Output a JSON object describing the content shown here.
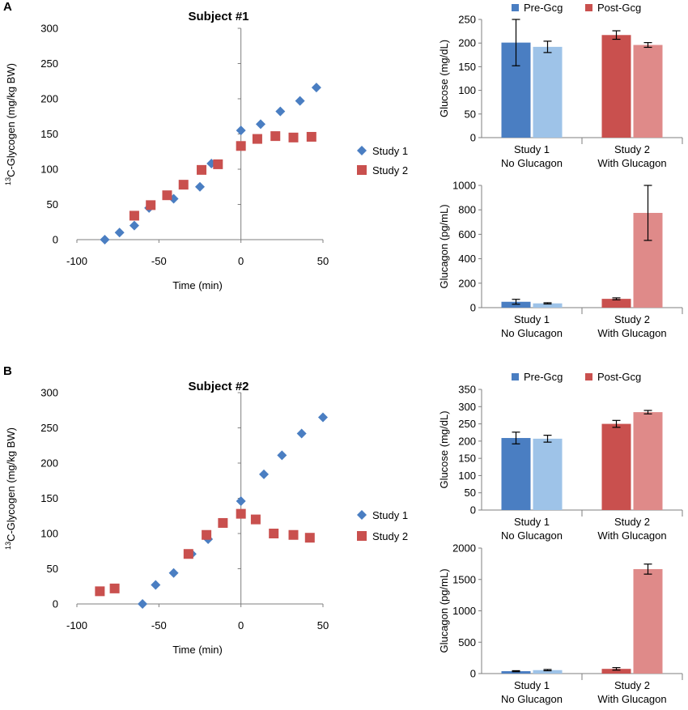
{
  "panel_labels": [
    "A",
    "B"
  ],
  "colors": {
    "study1": "#4a7ec2",
    "study2": "#c9504e",
    "pre1": "#4a7ec2",
    "post1": "#9ec3e8",
    "pre2": "#c9504e",
    "post2": "#df8a89"
  },
  "chart_data": [
    {
      "id": "A-scatter",
      "type": "scatter",
      "title": "Subject #1",
      "xlabel": "Time (min)",
      "ylabel_sup": "13",
      "ylabel_rest": "C-Glycogen (mg/kg BW)",
      "xlim": [
        -100,
        50
      ],
      "ylim": [
        0,
        300
      ],
      "xticks": [
        -100,
        -50,
        0,
        50
      ],
      "yticks": [
        0,
        50,
        100,
        150,
        200,
        250,
        300
      ],
      "series": [
        {
          "name": "Study 1",
          "marker": "diamond",
          "x": [
            -83,
            -74,
            -65,
            -56,
            -41,
            -25,
            -18,
            0,
            12,
            24,
            36,
            46
          ],
          "y": [
            0,
            10,
            20,
            45,
            58,
            75,
            108,
            155,
            164,
            182,
            197,
            216
          ]
        },
        {
          "name": "Study 2",
          "marker": "square",
          "x": [
            -65,
            -55,
            -45,
            -35,
            -24,
            -14,
            0,
            10,
            21,
            32,
            43
          ],
          "y": [
            34,
            49,
            63,
            78,
            99,
            107,
            133,
            143,
            147,
            145,
            146
          ]
        }
      ]
    },
    {
      "id": "A-glucose",
      "type": "bar",
      "ylabel": "Glucose (mg/dL)",
      "ylim": [
        0,
        250
      ],
      "yticks": [
        0,
        50,
        100,
        150,
        200,
        250
      ],
      "legend": [
        "Pre-Gcg",
        "Post-Gcg"
      ],
      "groups": [
        [
          "Study 1",
          "No Glucagon"
        ],
        [
          "Study 2",
          "With Glucagon"
        ]
      ],
      "values": [
        [
          201,
          192
        ],
        [
          217,
          196
        ]
      ],
      "errors": [
        [
          49,
          12
        ],
        [
          9,
          5
        ]
      ]
    },
    {
      "id": "A-glucagon",
      "type": "bar",
      "ylabel": "Glucagon (pg/mL)",
      "ylim": [
        0,
        1000
      ],
      "yticks": [
        0,
        200,
        400,
        600,
        800,
        1000
      ],
      "groups": [
        [
          "Study 1",
          "No Glucagon"
        ],
        [
          "Study 2",
          "With Glucagon"
        ]
      ],
      "values": [
        [
          48,
          35
        ],
        [
          72,
          775
        ]
      ],
      "errors": [
        [
          20,
          5
        ],
        [
          8,
          225
        ]
      ]
    },
    {
      "id": "B-scatter",
      "type": "scatter",
      "title": "Subject #2",
      "xlabel": "Time (min)",
      "ylabel_sup": "13",
      "ylabel_rest": "C-Glycogen (mg/kg BW)",
      "xlim": [
        -100,
        50
      ],
      "ylim": [
        0,
        300
      ],
      "xticks": [
        -100,
        -50,
        0,
        50
      ],
      "yticks": [
        0,
        50,
        100,
        150,
        200,
        250,
        300
      ],
      "series": [
        {
          "name": "Study 1",
          "marker": "diamond",
          "x": [
            -60,
            -52,
            -41,
            -30,
            -20,
            0,
            14,
            25,
            37,
            50
          ],
          "y": [
            0,
            27,
            44,
            71,
            92,
            146,
            184,
            211,
            242,
            265
          ]
        },
        {
          "name": "Study 2",
          "marker": "square",
          "x": [
            -86,
            -77,
            -32,
            -21,
            -11,
            0,
            9,
            20,
            32,
            42
          ],
          "y": [
            18,
            22,
            71,
            98,
            115,
            128,
            120,
            100,
            98,
            94
          ]
        }
      ]
    },
    {
      "id": "B-glucose",
      "type": "bar",
      "ylabel": "Glucose (mg/dL)",
      "ylim": [
        0,
        350
      ],
      "yticks": [
        0,
        50,
        100,
        150,
        200,
        250,
        300,
        350
      ],
      "legend": [
        "Pre-Gcg",
        "Post-Gcg"
      ],
      "groups": [
        [
          "Study 1",
          "No Glucagon"
        ],
        [
          "Study 2",
          "With Glucagon"
        ]
      ],
      "values": [
        [
          209,
          207
        ],
        [
          250,
          284
        ]
      ],
      "errors": [
        [
          17,
          10
        ],
        [
          10,
          5
        ]
      ]
    },
    {
      "id": "B-glucagon",
      "type": "bar",
      "ylabel": "Glucagon (pg/mL)",
      "ylim": [
        0,
        2000
      ],
      "yticks": [
        0,
        500,
        1000,
        1500,
        2000
      ],
      "groups": [
        [
          "Study 1",
          "No Glucagon"
        ],
        [
          "Study 2",
          "With Glucagon"
        ]
      ],
      "values": [
        [
          38,
          55
        ],
        [
          75,
          1665
        ]
      ],
      "errors": [
        [
          8,
          10
        ],
        [
          20,
          80
        ]
      ]
    }
  ]
}
